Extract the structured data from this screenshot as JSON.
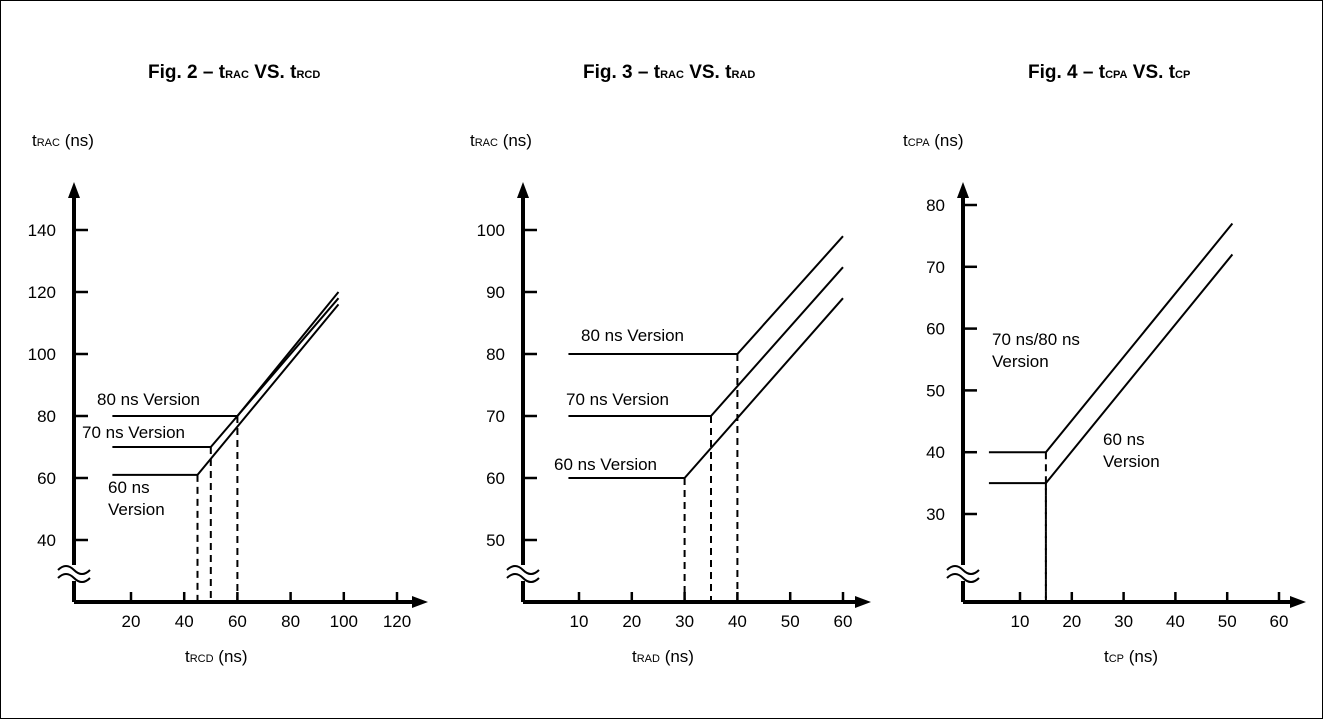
{
  "chart_data": [
    {
      "type": "line",
      "title": {
        "prefix": "Fig. 2",
        "sep": "–",
        "y_main": "t",
        "y_sub": "RAC",
        "vs": "VS.",
        "x_main": "t",
        "x_sub": "RCD"
      },
      "ylabel": {
        "main": "t",
        "sub": "RAC",
        "unit": "(ns)"
      },
      "xlabel": {
        "main": "t",
        "sub": "RCD",
        "unit": "(ns)"
      },
      "x_ticks": [
        20,
        40,
        60,
        80,
        100,
        120
      ],
      "y_ticks": [
        40,
        60,
        80,
        100,
        120,
        140
      ],
      "xlim": [
        0,
        130
      ],
      "ylim": [
        20,
        152
      ],
      "axis_break": true,
      "series": [
        {
          "label_lines": [
            "60 ns",
            "Version"
          ],
          "x": [
            13,
            45,
            98
          ],
          "y": [
            61,
            61,
            116
          ],
          "drop_x": 45
        },
        {
          "label_lines": [
            "70 ns Version"
          ],
          "x": [
            13,
            50,
            98
          ],
          "y": [
            70,
            70,
            118
          ],
          "drop_x": 50
        },
        {
          "label_lines": [
            "80 ns Version"
          ],
          "x": [
            13,
            60,
            98
          ],
          "y": [
            80,
            80,
            120
          ],
          "drop_x": 60
        }
      ]
    },
    {
      "type": "line",
      "title": {
        "prefix": "Fig. 3",
        "sep": "–",
        "y_main": "t",
        "y_sub": "RAC",
        "vs": "VS.",
        "x_main": "t",
        "x_sub": "RAD"
      },
      "ylabel": {
        "main": "t",
        "sub": "RAC",
        "unit": "(ns)"
      },
      "xlabel": {
        "main": "t",
        "sub": "RAD",
        "unit": "(ns)"
      },
      "x_ticks": [
        10,
        20,
        30,
        40,
        50,
        60
      ],
      "y_ticks": [
        50,
        60,
        70,
        80,
        90,
        100
      ],
      "xlim": [
        0,
        66
      ],
      "ylim": [
        40,
        106
      ],
      "axis_break": true,
      "series": [
        {
          "label_lines": [
            "60 ns Version"
          ],
          "x": [
            8,
            30,
            60
          ],
          "y": [
            60,
            60,
            89
          ],
          "drop_x": 30
        },
        {
          "label_lines": [
            "70 ns Version"
          ],
          "x": [
            8,
            35,
            60
          ],
          "y": [
            70,
            70,
            94
          ],
          "drop_x": 35
        },
        {
          "label_lines": [
            "80 ns Version"
          ],
          "x": [
            8,
            40,
            60
          ],
          "y": [
            80,
            80,
            99
          ],
          "drop_x": 40
        }
      ]
    },
    {
      "type": "line",
      "title": {
        "prefix": "Fig. 4",
        "sep": "–",
        "y_main": "t",
        "y_sub": "CPA",
        "vs": "VS.",
        "x_main": "t",
        "x_sub": "CP"
      },
      "ylabel": {
        "main": "t",
        "sub": "CPA",
        "unit": "(ns)"
      },
      "xlabel": {
        "main": "t",
        "sub": "CP",
        "unit": "(ns)"
      },
      "x_ticks": [
        10,
        20,
        30,
        40,
        50,
        60
      ],
      "y_ticks": [
        30,
        40,
        50,
        60,
        70,
        80
      ],
      "xlim": [
        0,
        66
      ],
      "ylim": [
        17,
        84
      ],
      "axis_break": true,
      "series": [
        {
          "label_lines": [
            "60 ns",
            "Version"
          ],
          "x": [
            4,
            15,
            51
          ],
          "y": [
            35,
            35,
            72
          ],
          "drop_x": 15
        },
        {
          "label_lines": [
            "70 ns/80 ns",
            "Version"
          ],
          "x": [
            4,
            15,
            51
          ],
          "y": [
            40,
            40,
            77
          ],
          "drop_x": 15
        }
      ]
    }
  ]
}
